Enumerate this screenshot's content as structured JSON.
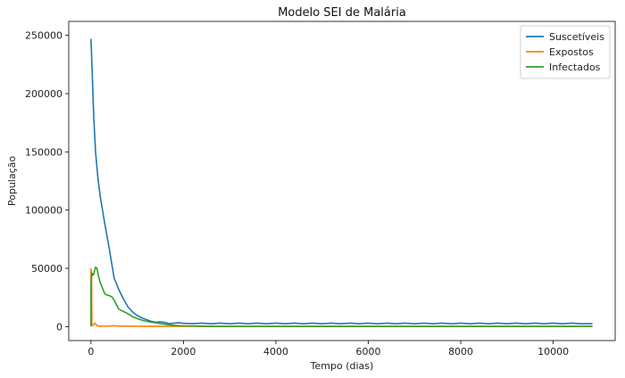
{
  "chart_data": {
    "type": "line",
    "title": "Modelo SEI de Malária",
    "xlabel": "Tempo (dias)",
    "ylabel": "População",
    "xlim": [
      -480,
      11340
    ],
    "ylim": [
      -12000,
      262000
    ],
    "xticks": [
      0,
      2000,
      4000,
      6000,
      8000,
      10000
    ],
    "yticks": [
      0,
      50000,
      100000,
      150000,
      200000,
      250000
    ],
    "grid": false,
    "legend_position": "top-right",
    "series": [
      {
        "name": "Suscetíveis",
        "color": "#1f77b4",
        "x": [
          0,
          30,
          60,
          100,
          150,
          200,
          300,
          400,
          500,
          600,
          700,
          800,
          900,
          1000,
          1100,
          1200,
          1300,
          1400,
          1500,
          1600,
          1700,
          1800,
          1900,
          2000,
          2200,
          2400,
          2600,
          2800,
          3000,
          3200,
          3400,
          3600,
          3800,
          4000,
          4200,
          4400,
          4600,
          4800,
          5000,
          5200,
          5400,
          5600,
          5800,
          6000,
          6200,
          6400,
          6600,
          6800,
          7000,
          7200,
          7400,
          7600,
          7800,
          8000,
          8200,
          8400,
          8600,
          8800,
          9000,
          9200,
          9400,
          9600,
          9800,
          10000,
          10200,
          10400,
          10600,
          10850
        ],
        "y": [
          247000,
          215000,
          180000,
          150000,
          128000,
          112000,
          88000,
          66000,
          42000,
          32000,
          24000,
          17000,
          12500,
          9500,
          7500,
          6000,
          4500,
          3800,
          4000,
          3500,
          2500,
          3000,
          3200,
          2800,
          2500,
          3000,
          2400,
          3000,
          2400,
          3000,
          2400,
          3000,
          2400,
          3000,
          2400,
          3000,
          2400,
          3000,
          2400,
          3000,
          2400,
          3000,
          2400,
          3000,
          2400,
          3000,
          2400,
          3000,
          2400,
          3000,
          2400,
          3000,
          2400,
          3000,
          2400,
          3000,
          2400,
          3000,
          2400,
          3000,
          2400,
          3000,
          2400,
          3000,
          2400,
          3000,
          2400,
          2500
        ]
      },
      {
        "name": "Expostos",
        "color": "#ff7f0e",
        "x": [
          0,
          5,
          12,
          20,
          40,
          60,
          80,
          100,
          130,
          160,
          200,
          300,
          400,
          500,
          600,
          800,
          1000,
          1500,
          2000,
          3000,
          4000,
          6000,
          8000,
          10000,
          10850
        ],
        "y": [
          50000,
          3000,
          48000,
          1500,
          1000,
          1500,
          3000,
          2500,
          800,
          400,
          300,
          300,
          500,
          800,
          400,
          400,
          300,
          200,
          200,
          200,
          200,
          200,
          200,
          200,
          200
        ]
      },
      {
        "name": "Infectados",
        "color": "#2ca02c",
        "x": [
          0,
          5,
          10,
          20,
          40,
          60,
          80,
          100,
          130,
          160,
          200,
          250,
          300,
          350,
          400,
          450,
          500,
          550,
          600,
          700,
          800,
          900,
          1000,
          1100,
          1200,
          1300,
          1400,
          1500,
          1600,
          1700,
          1800,
          1900,
          2000,
          2500,
          3000,
          4000,
          6000,
          8000,
          10000,
          10850
        ],
        "y": [
          0,
          40000,
          44000,
          46000,
          44000,
          45000,
          48000,
          51000,
          50000,
          44000,
          38000,
          33000,
          28000,
          27000,
          26500,
          25500,
          23000,
          19000,
          15000,
          13000,
          11000,
          8500,
          7000,
          5500,
          4500,
          3800,
          3300,
          2500,
          2000,
          1500,
          1100,
          800,
          600,
          300,
          200,
          150,
          150,
          150,
          150,
          150
        ]
      }
    ]
  }
}
